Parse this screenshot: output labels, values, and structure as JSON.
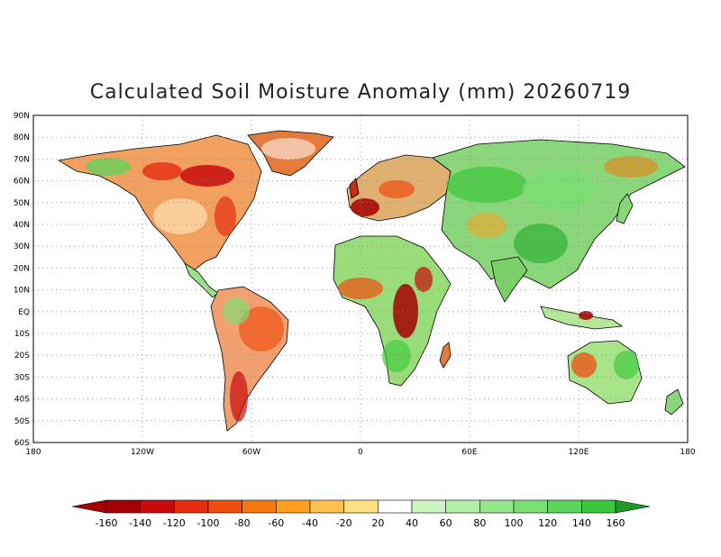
{
  "map": {
    "title": "Calculated Soil Moisture Anomaly (mm) 20260719",
    "lat_labels": [
      "90N",
      "80N",
      "70N",
      "60N",
      "50N",
      "40N",
      "30N",
      "20N",
      "10N",
      "EQ",
      "10S",
      "20S",
      "30S",
      "40S",
      "50S",
      "60S"
    ],
    "lon_labels": [
      "180",
      "120W",
      "60W",
      "0",
      "60E",
      "120E",
      "180"
    ],
    "grid": "dotted"
  },
  "colorbar": {
    "labels": [
      "-160",
      "-140",
      "-120",
      "-100",
      "-80",
      "-60",
      "-40",
      "-20",
      "20",
      "40",
      "60",
      "80",
      "100",
      "120",
      "140",
      "160"
    ],
    "colors": [
      "#a50000",
      "#c80a0a",
      "#e62d10",
      "#f04e10",
      "#f7780f",
      "#ffa020",
      "#ffc050",
      "#ffe080",
      "#ffffff",
      "#ccf5c2",
      "#b4f0a6",
      "#96e88c",
      "#78e073",
      "#5ad65a",
      "#3cc83c",
      "#1eaa28",
      "#128a1e",
      "#0b6e14"
    ],
    "lower_arrow_color": "#a50000",
    "upper_arrow_color": "#1e9a28"
  },
  "colors": {
    "dry": "#c80a0a",
    "wet": "#1eaa28",
    "ocean": "#ffffff",
    "coast": "#000000"
  }
}
